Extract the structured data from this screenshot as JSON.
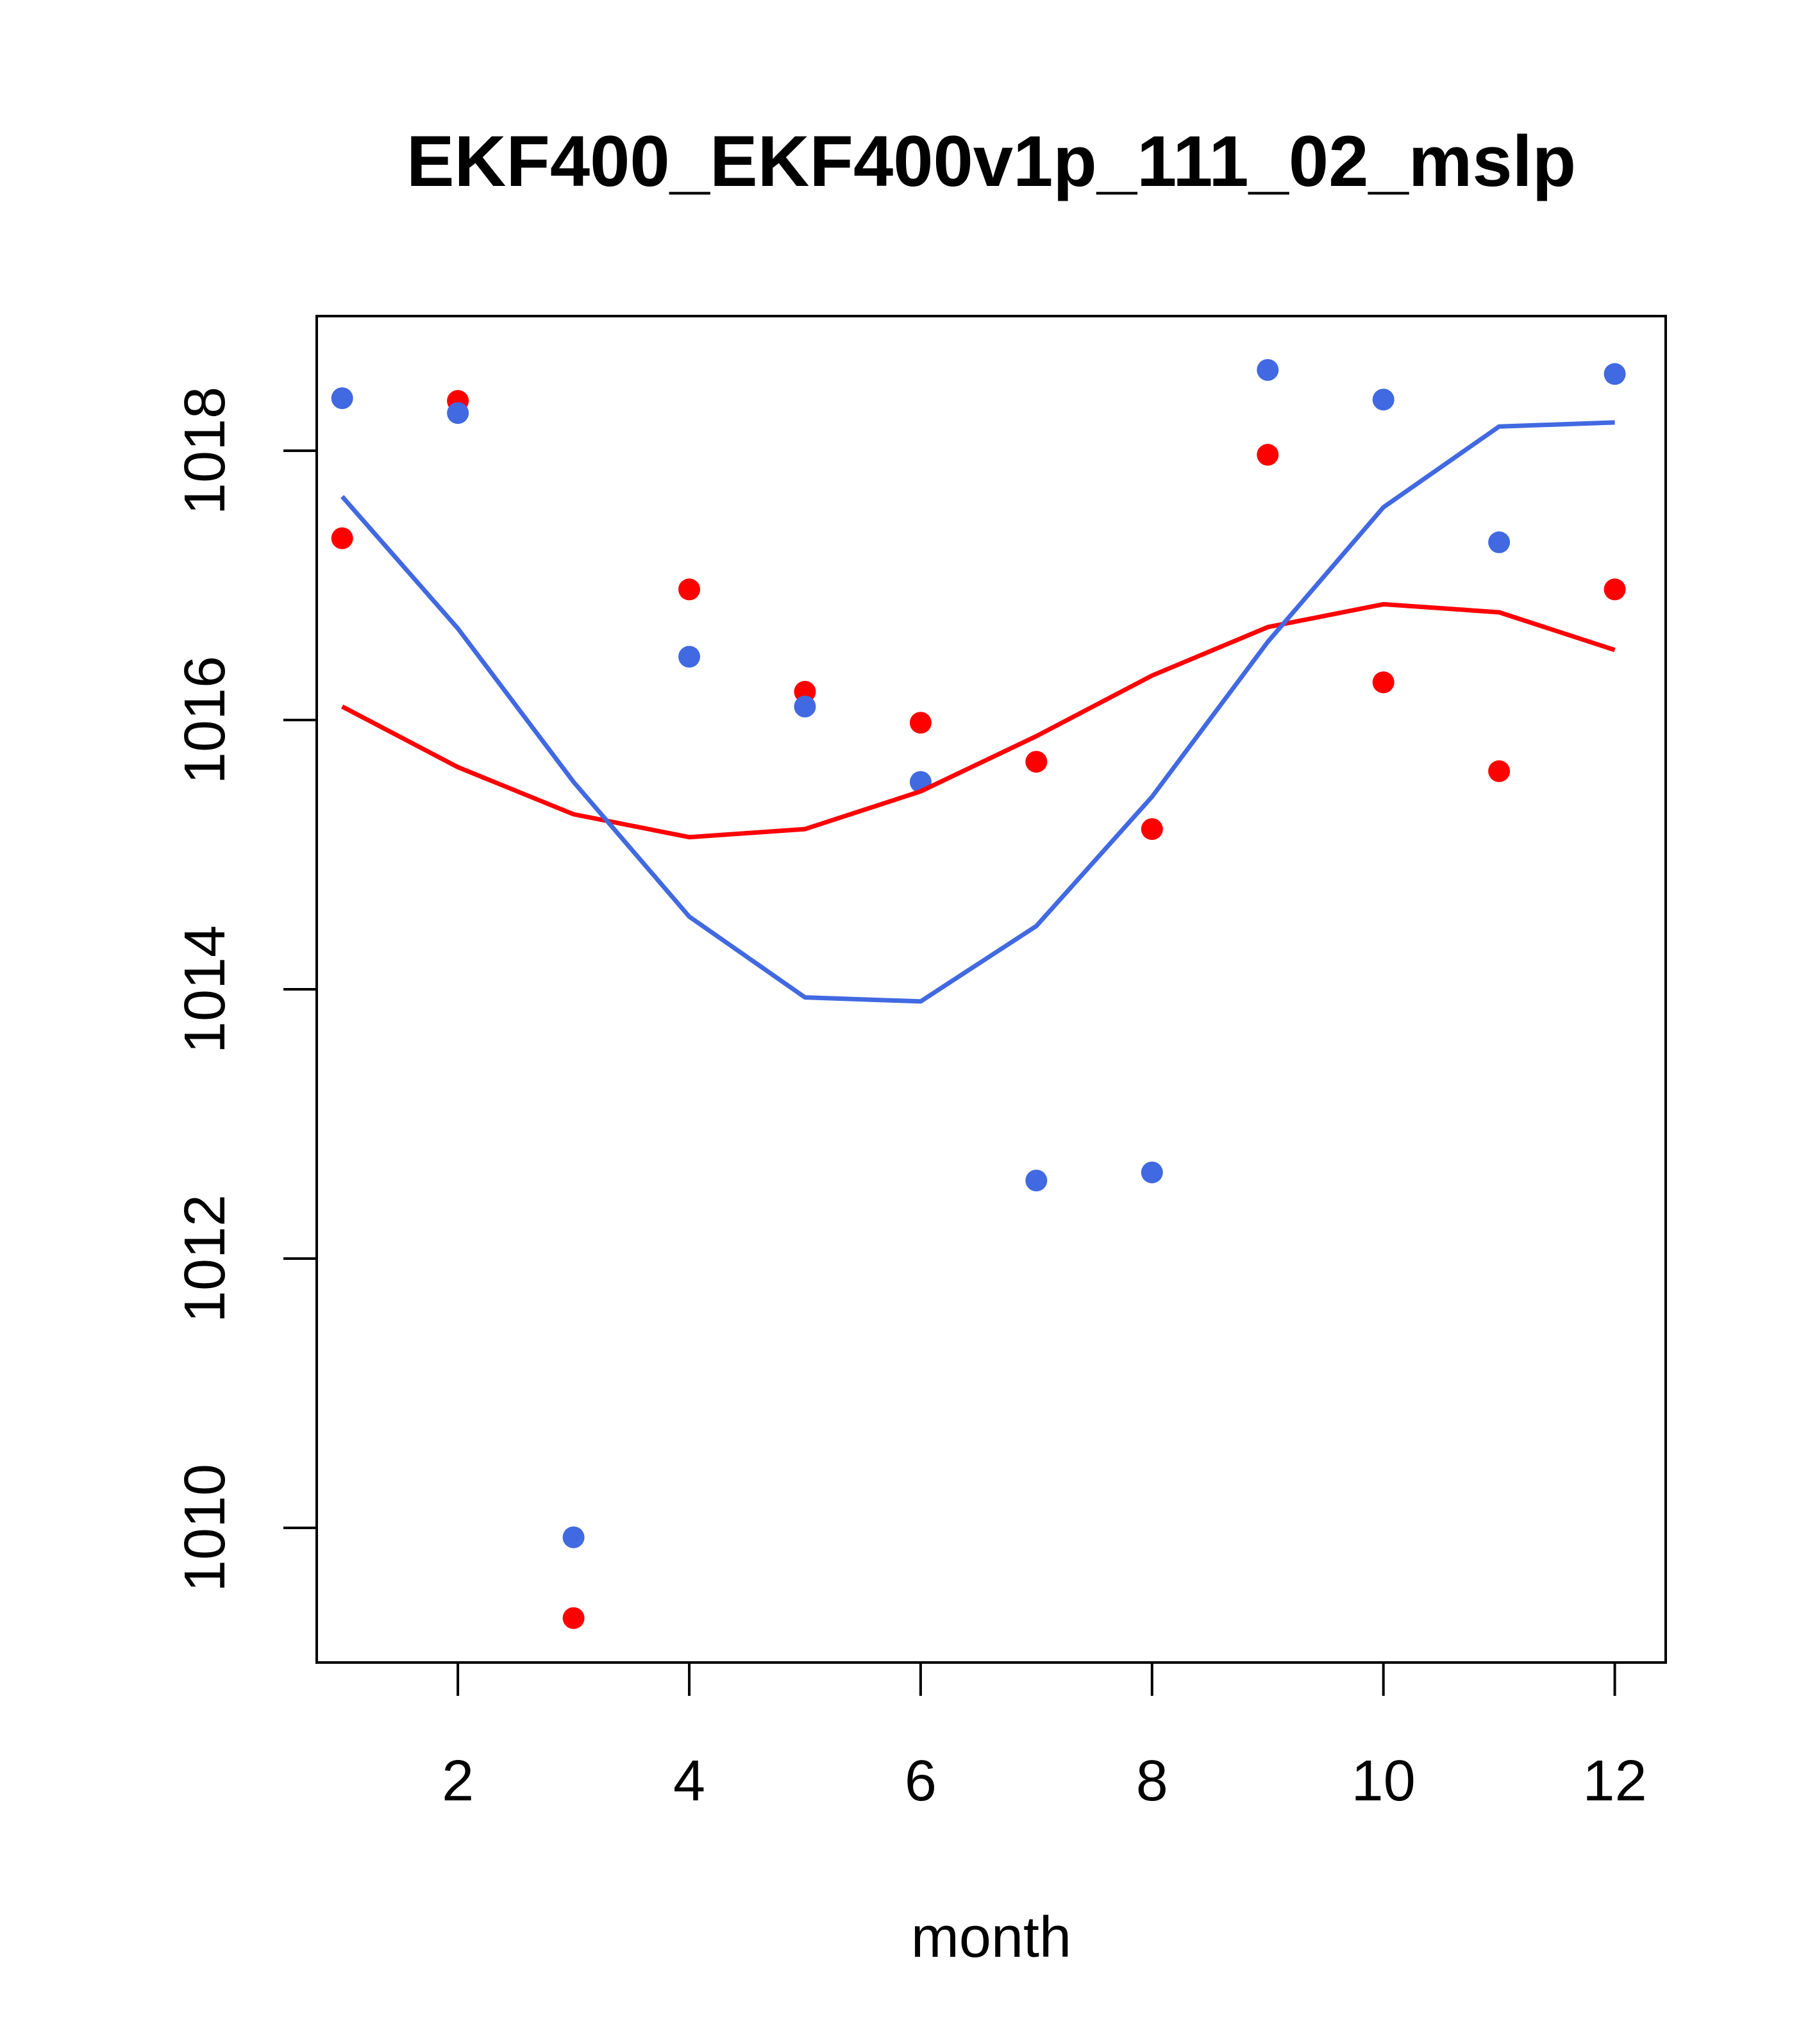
{
  "chart_data": {
    "type": "scatter",
    "title": "EKF400_EKF400v1p_111_02_mslp",
    "xlabel": "month",
    "ylabel": "",
    "xlim": [
      0.78,
      12.44
    ],
    "ylim": [
      1009.0,
      1019.0
    ],
    "x_ticks": [
      2,
      4,
      6,
      8,
      10,
      12
    ],
    "x_tick_labels": [
      "2",
      "4",
      "6",
      "8",
      "10",
      "12"
    ],
    "y_ticks": [
      1010,
      1012,
      1014,
      1016,
      1018
    ],
    "y_tick_labels": [
      "1010",
      "1012",
      "1014",
      "1016",
      "1018"
    ],
    "grid": false,
    "legend": null,
    "series": [
      {
        "name": "red points",
        "kind": "points",
        "color": "#ff0000",
        "x": [
          1,
          2,
          3,
          4,
          5,
          6,
          7,
          8,
          9,
          10,
          11,
          12
        ],
        "y": [
          1017.35,
          1018.37,
          1009.33,
          1016.97,
          1016.21,
          1015.98,
          1015.69,
          1015.19,
          1017.97,
          1016.28,
          1015.62,
          1016.97
        ]
      },
      {
        "name": "blue points",
        "kind": "points",
        "color": "#4169e1",
        "x": [
          1,
          2,
          3,
          4,
          5,
          6,
          7,
          8,
          9,
          10,
          11,
          12
        ],
        "y": [
          1018.39,
          1018.28,
          1009.93,
          1016.47,
          1016.1,
          1015.54,
          1012.58,
          1012.64,
          1018.6,
          1018.38,
          1017.32,
          1018.57
        ]
      },
      {
        "name": "red line",
        "kind": "line",
        "color": "#ff0000",
        "x": [
          1,
          2,
          3,
          4,
          5,
          6,
          7,
          8,
          9,
          10,
          11,
          12
        ],
        "y": [
          1016.1,
          1015.65,
          1015.3,
          1015.13,
          1015.19,
          1015.47,
          1015.88,
          1016.33,
          1016.69,
          1016.86,
          1016.8,
          1016.52
        ]
      },
      {
        "name": "blue line",
        "kind": "line",
        "color": "#4169e1",
        "x": [
          1,
          2,
          3,
          4,
          5,
          6,
          7,
          8,
          9,
          10,
          11,
          12
        ],
        "y": [
          1017.66,
          1016.68,
          1015.54,
          1014.54,
          1013.94,
          1013.91,
          1014.47,
          1015.43,
          1016.58,
          1017.58,
          1018.18,
          1018.21
        ]
      }
    ]
  }
}
